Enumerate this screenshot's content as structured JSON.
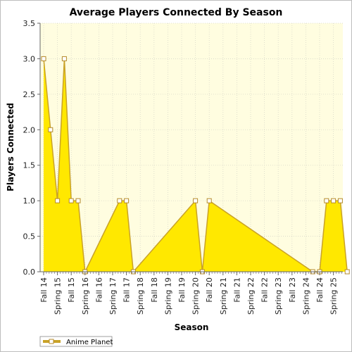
{
  "chart_data": {
    "type": "area",
    "title": "Average Players Connected By Season",
    "xlabel": "Season",
    "ylabel": "Players Connected",
    "ylim": [
      0,
      3.5
    ],
    "y_ticks": [
      "0.0",
      "0.5",
      "1.0",
      "1.5",
      "2.0",
      "2.5",
      "3.0",
      "3.5"
    ],
    "x_tick_labels": [
      "Fall 14",
      "Spring 15",
      "Fall 15",
      "Spring 16",
      "Fall 16",
      "Spring 17",
      "Fall 17",
      "Spring 18",
      "Fall 18",
      "Spring 19",
      "Fall 19",
      "Spring 20",
      "Fall 20",
      "Spring 21",
      "Fall 21",
      "Spring 22",
      "Fall 22",
      "Spring 23",
      "Fall 23",
      "Spring 24",
      "Fall 24",
      "Spring 25"
    ],
    "grid": true,
    "legend_position": "bottom-left",
    "series": [
      {
        "name": "Anime Planet",
        "color": "#ffe800",
        "line_color": "#c9a227",
        "points": [
          {
            "x": 0.0,
            "y": 3.0
          },
          {
            "x": 0.5,
            "y": 2.0
          },
          {
            "x": 1.0,
            "y": 1.0
          },
          {
            "x": 1.5,
            "y": 3.0
          },
          {
            "x": 2.0,
            "y": 1.0
          },
          {
            "x": 2.5,
            "y": 1.0
          },
          {
            "x": 3.0,
            "y": 0.0
          },
          {
            "x": 5.5,
            "y": 1.0
          },
          {
            "x": 6.0,
            "y": 1.0
          },
          {
            "x": 6.5,
            "y": 0.0
          },
          {
            "x": 11.0,
            "y": 1.0
          },
          {
            "x": 11.5,
            "y": 0.0
          },
          {
            "x": 12.0,
            "y": 1.0
          },
          {
            "x": 19.5,
            "y": 0.0
          },
          {
            "x": 20.0,
            "y": 0.0
          },
          {
            "x": 20.5,
            "y": 1.0
          },
          {
            "x": 21.0,
            "y": 1.0
          },
          {
            "x": 21.5,
            "y": 1.0
          },
          {
            "x": 22.0,
            "y": 0.0
          }
        ]
      }
    ]
  },
  "colors": {
    "plot_background": "#fffde0",
    "gridline": "#d8d8c8",
    "marker_fill": "#ffffff",
    "marker_stroke": "#b58a2a",
    "axis": "#666666"
  }
}
